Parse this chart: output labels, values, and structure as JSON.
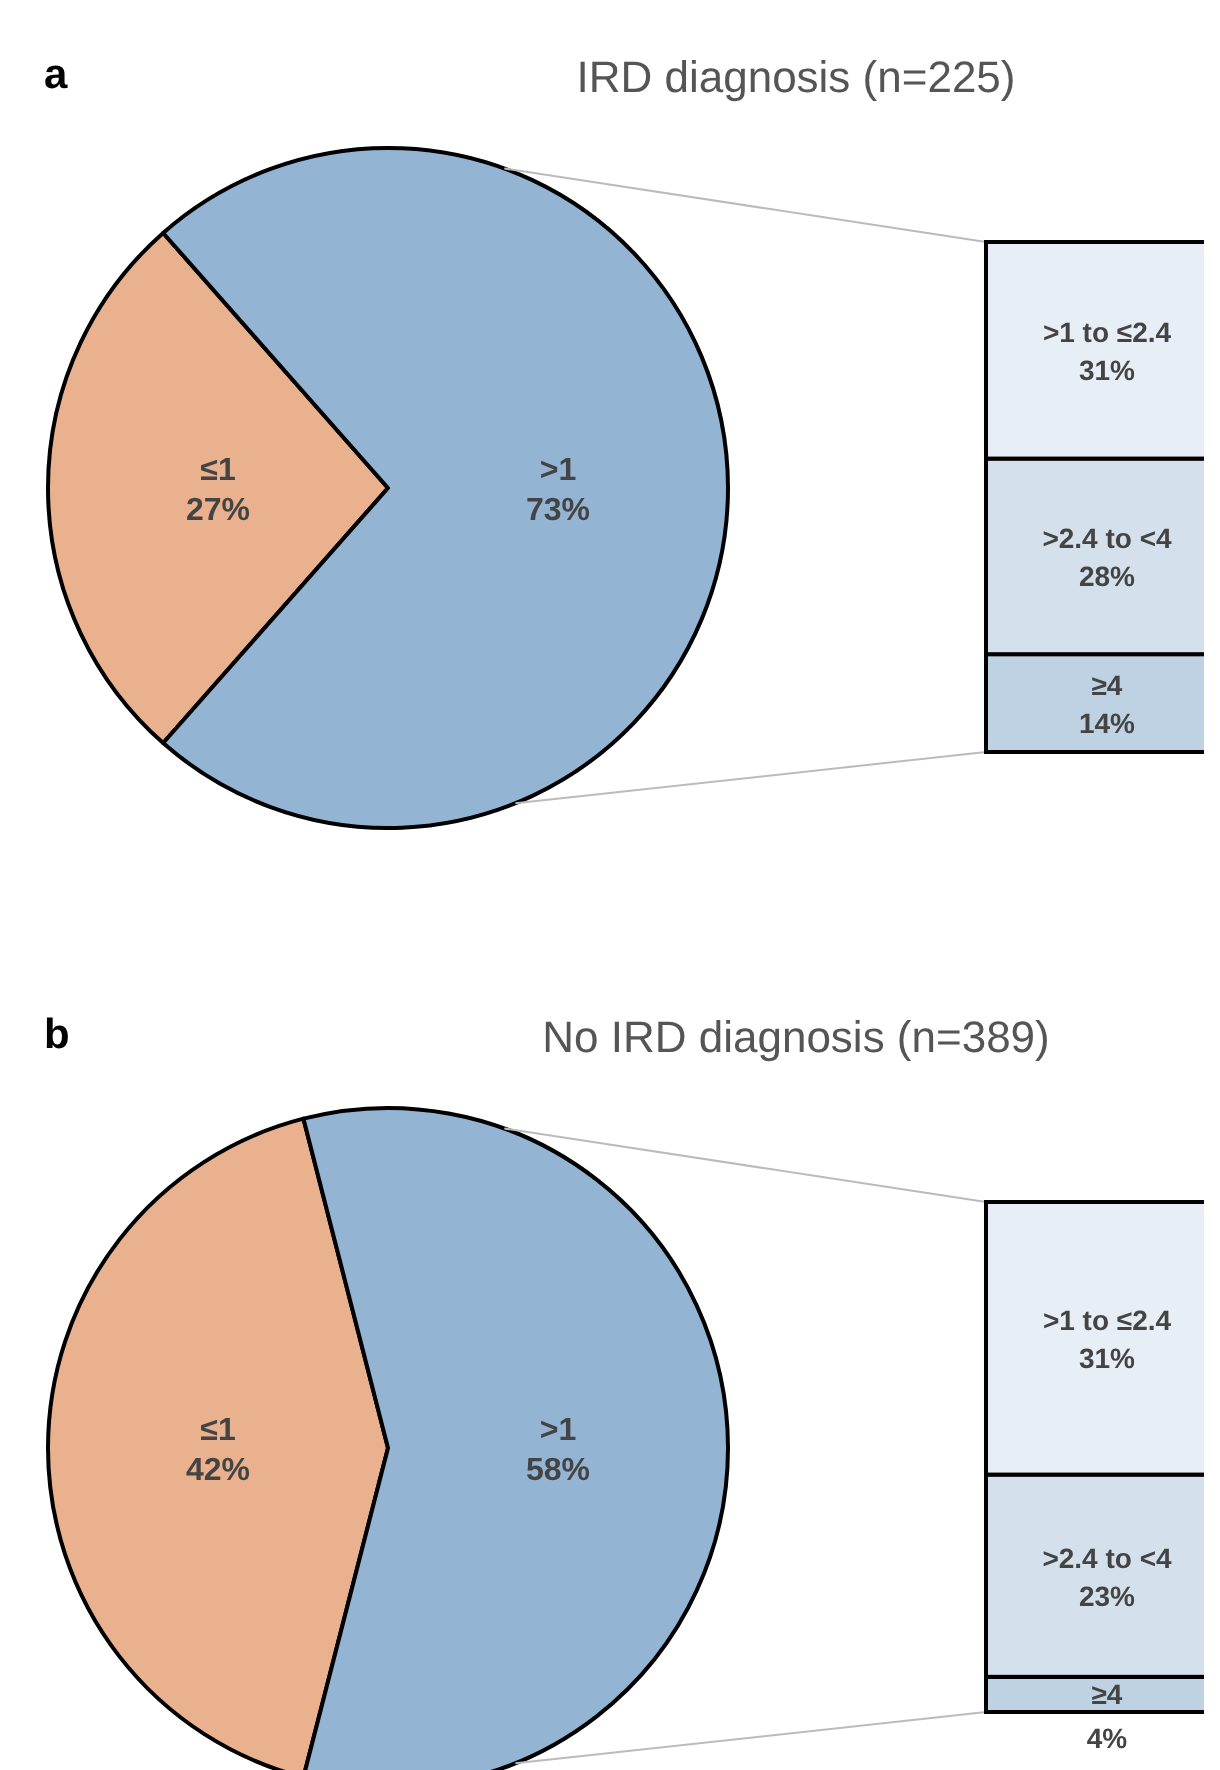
{
  "chart_data": [
    {
      "type": "pie",
      "title": "IRD diagnosis (n=225)",
      "annotations": [
        "a"
      ],
      "categories": [
        "≤1",
        ">1"
      ],
      "values": [
        27,
        73
      ],
      "value_labels": [
        "27%",
        "73%"
      ],
      "colors": [
        "#eab18f",
        "#93b4d3"
      ]
    },
    {
      "type": "bar",
      "stacked": true,
      "categories": [
        null
      ],
      "series": [
        {
          "name": "≥4",
          "color": "#bfd2e4",
          "values": [
            14
          ],
          "value_labels": [
            "14%"
          ]
        },
        {
          "name": ">2.4 to <4",
          "color": "#d4e1ed",
          "values": [
            28
          ],
          "value_labels": [
            "28%"
          ]
        },
        {
          "name": ">1 to ≤2.4",
          "color": "#e8eef6",
          "values": [
            31
          ],
          "value_labels": [
            "31%"
          ]
        }
      ]
    },
    {
      "type": "pie",
      "title": "No IRD diagnosis (n=389)",
      "annotations": [
        "b"
      ],
      "categories": [
        "≤1",
        ">1"
      ],
      "values": [
        42,
        58
      ],
      "value_labels": [
        "42%",
        "58%"
      ],
      "colors": [
        "#eab18f",
        "#93b4d3"
      ]
    },
    {
      "type": "bar",
      "stacked": true,
      "categories": [
        null
      ],
      "series": [
        {
          "name": "≥4",
          "color": "#bfd2e4",
          "values": [
            4
          ],
          "value_labels": [
            "4%"
          ]
        },
        {
          "name": ">2.4 to <4",
          "color": "#d4e1ed",
          "values": [
            23
          ],
          "value_labels": [
            "23%"
          ]
        },
        {
          "name": ">1 to ≤2.4",
          "color": "#e8eef6",
          "values": [
            31
          ],
          "value_labels": [
            "31%"
          ]
        }
      ]
    }
  ]
}
